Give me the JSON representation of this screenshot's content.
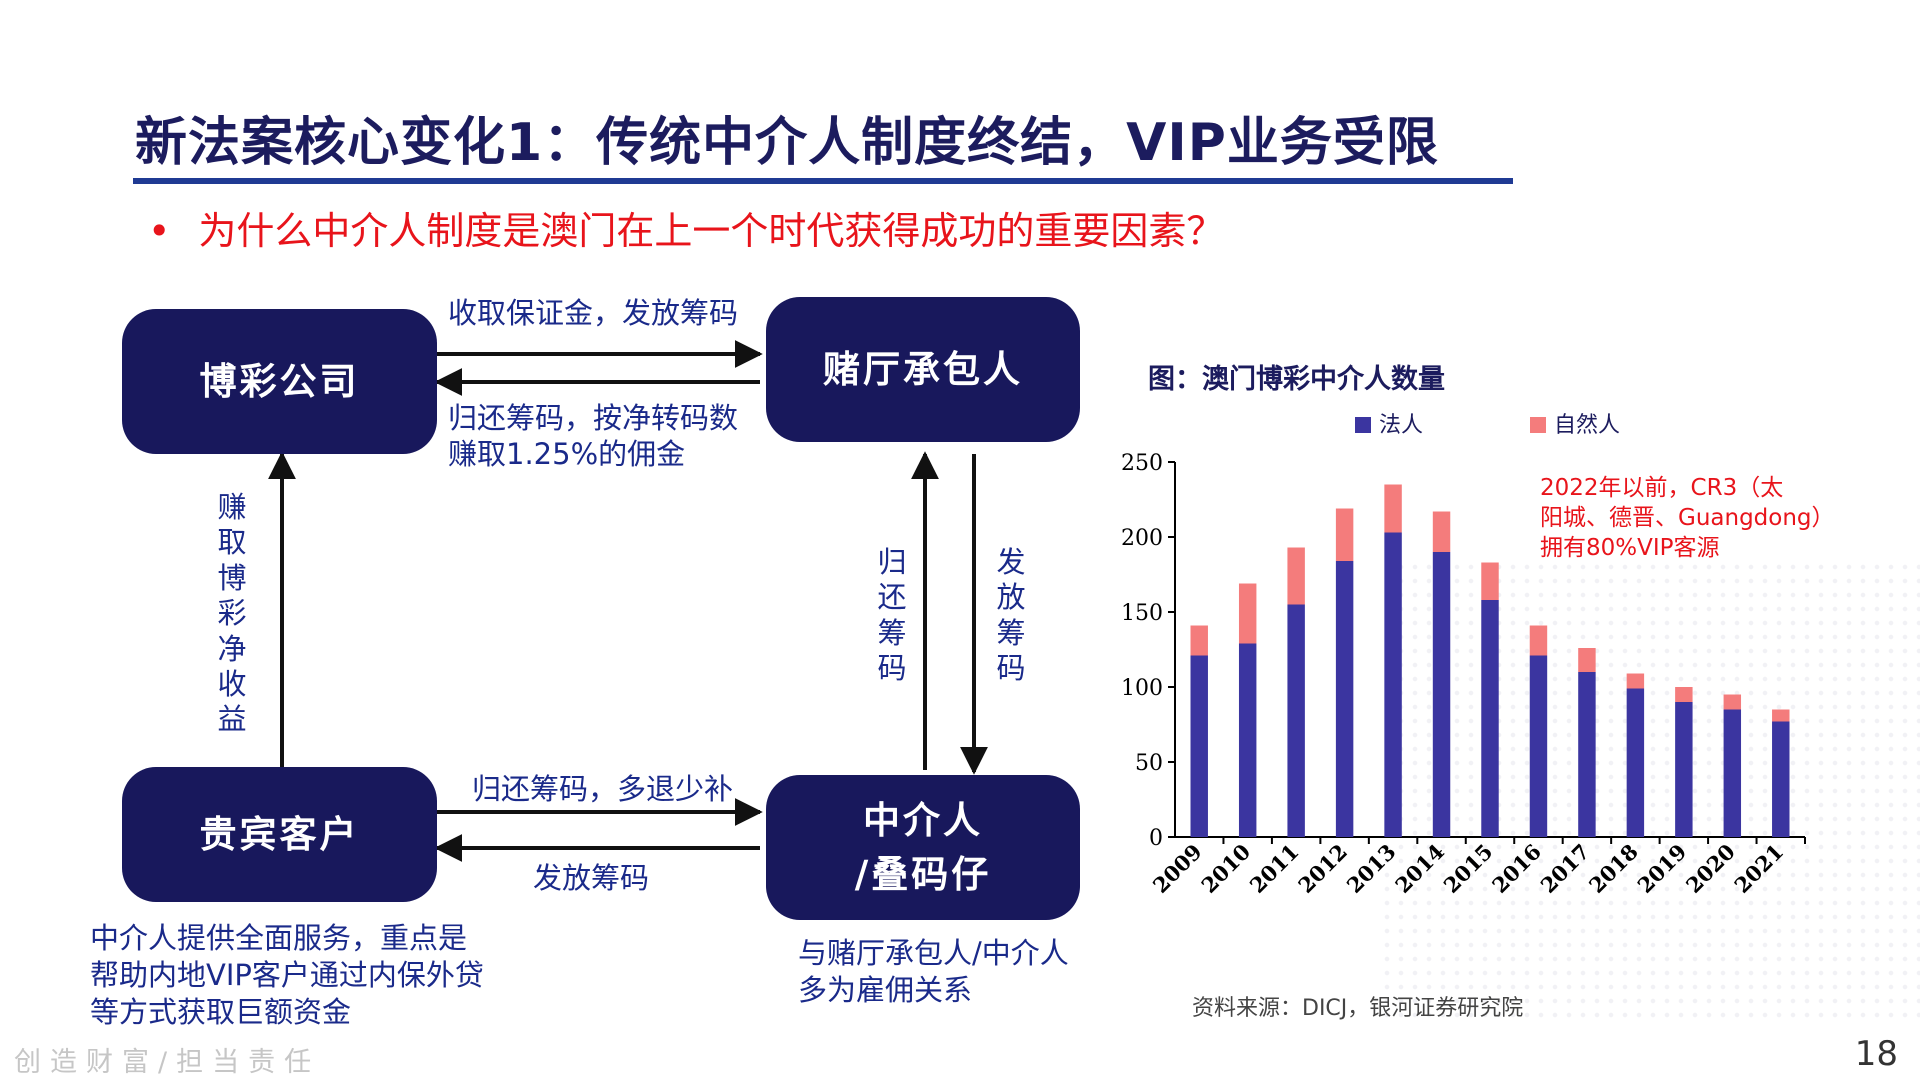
{
  "header": {
    "title": "新法案核心变化1：传统中介人制度终结，VIP业务受限",
    "subtitle_bullet": "•",
    "subtitle": "为什么中介人制度是澳门在上一个时代获得成功的重要因素？"
  },
  "diagram": {
    "boxes": {
      "gaming_company": "博彩公司",
      "hall_contractor": "赌厅承包人",
      "vip_client": "贵宾客户",
      "junket_line1": "中介人",
      "junket_line2": "/叠码仔"
    },
    "labels": {
      "top_forward": "收取保证金，发放筹码",
      "top_back_line1": "归还筹码，按净转码数",
      "top_back_line2": "赚取1.25%的佣金",
      "left_vertical": "赚取博彩净收益",
      "middle_up": "归还筹码",
      "middle_down": "发放筹码",
      "bottom_forward": "归还筹码，多退少补",
      "bottom_back": "发放筹码"
    },
    "notes": {
      "client_line1": "中介人提供全面服务，重点是",
      "client_line2": "帮助内地VIP客户通过内保外贷",
      "client_line3": "等方式获取巨额资金",
      "junket_line1": "与赌厅承包人/中介人",
      "junket_line2": "多为雇佣关系"
    }
  },
  "chart": {
    "title": "图：澳门博彩中介人数量",
    "note_line1": "2022年以前，CR3（太",
    "note_line2": "阳城、德晋、Guangdong）",
    "note_line3": "拥有80%VIP客源",
    "source": "资料来源：DICJ，银河证券研究院"
  },
  "chart_data": {
    "type": "bar",
    "stacked": true,
    "title": "图：澳门博彩中介人数量",
    "categories": [
      "2009",
      "2010",
      "2011",
      "2012",
      "2013",
      "2014",
      "2015",
      "2016",
      "2017",
      "2018",
      "2019",
      "2020",
      "2021"
    ],
    "series": [
      {
        "name": "法人",
        "color": "#3b35a0",
        "values": [
          121,
          129,
          155,
          184,
          203,
          190,
          158,
          121,
          110,
          99,
          90,
          85,
          77
        ]
      },
      {
        "name": "自然人",
        "color": "#f47c7c",
        "values": [
          20,
          40,
          38,
          35,
          32,
          27,
          25,
          20,
          16,
          10,
          10,
          10,
          8
        ]
      }
    ],
    "ylim": [
      0,
      250
    ],
    "yticks": [
      0,
      50,
      100,
      150,
      200,
      250
    ],
    "legend_position": "top",
    "grid": false
  },
  "footer": {
    "slogan": "创造财富/担当责任",
    "page_number": "18"
  }
}
